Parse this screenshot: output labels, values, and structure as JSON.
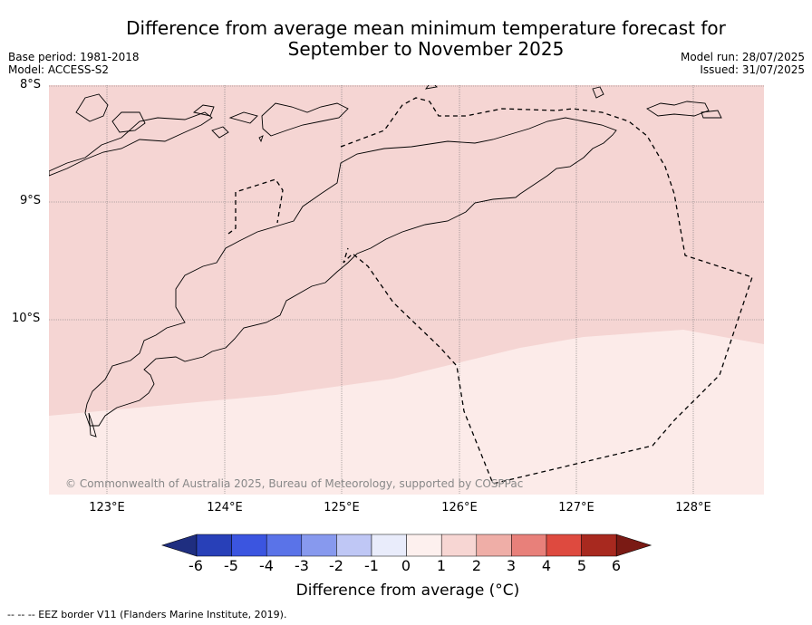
{
  "title_line1": "Difference from average mean minimum temperature forecast for",
  "title_line2": "September to November 2025",
  "base_period": "Base period: 1981-2018",
  "model": "Model: ACCESS-S2",
  "model_run": "Model run: 28/07/2025",
  "issued": "Issued: 31/07/2025",
  "lat_labels": [
    "8°S",
    "9°S",
    "10°S"
  ],
  "lon_labels": [
    "123°E",
    "124°E",
    "125°E",
    "126°E",
    "127°E",
    "128°E"
  ],
  "copyright": "© Commonwealth of Australia 2025, Bureau of Meteorology, supported by COSPPac",
  "colorbar": {
    "ticks": [
      "-6",
      "-5",
      "-4",
      "-3",
      "-2",
      "-1",
      "0",
      "1",
      "2",
      "3",
      "4",
      "5",
      "6"
    ],
    "colors": [
      "#1f2e80",
      "#2840b8",
      "#3b55e0",
      "#5a73e8",
      "#8799ee",
      "#bfc7f5",
      "#e9ecfb",
      "#fdf0ee",
      "#f7d6d3",
      "#efaea7",
      "#e8807a",
      "#de4a3f",
      "#a8291f",
      "#7a1a14"
    ],
    "label": "Difference from average (°C)"
  },
  "map_fill_colors": {
    "band_0_1": "#fcebe9",
    "band_1_2": "#f5d5d3"
  },
  "footnote": "--  --  -- EEZ border V11 (Flanders Marine Institute, 2019)."
}
